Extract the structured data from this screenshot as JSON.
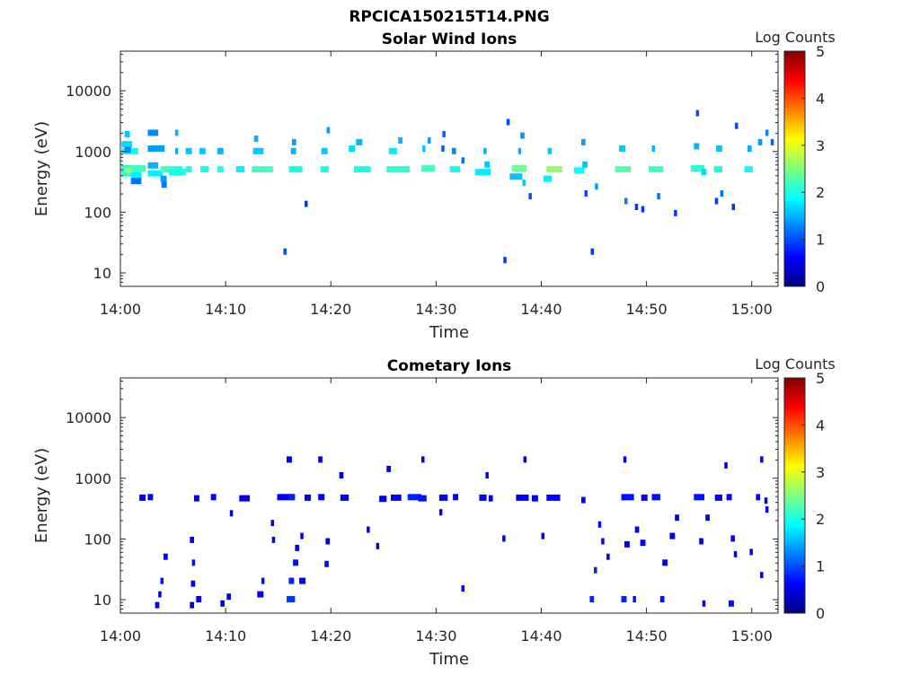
{
  "figure": {
    "title": "RPCICA150215T14.PNG"
  },
  "colormap": {
    "name": "jet",
    "stops": [
      "#00007f",
      "#0000ff",
      "#007fff",
      "#00ffff",
      "#7fff7f",
      "#ffff00",
      "#ff7f00",
      "#ff0000",
      "#7f0000"
    ]
  },
  "chart_data": [
    {
      "type": "heatmap",
      "title": "Solar Wind Ions",
      "xlabel": "Time",
      "ylabel": "Energy (eV)",
      "x_ticks": [
        "14:00",
        "14:10",
        "14:20",
        "14:30",
        "14:40",
        "14:50",
        "15:00"
      ],
      "x_tick_minutes": [
        0,
        10,
        20,
        30,
        40,
        50,
        60
      ],
      "xlim_minutes": [
        0,
        62.5
      ],
      "y_scale": "log",
      "y_ticks": [
        "10",
        "100",
        "1000",
        "10000"
      ],
      "y_tick_values": [
        10,
        100,
        1000,
        10000
      ],
      "ylim": [
        6,
        45000
      ],
      "colorbar": {
        "label": "Log Counts",
        "ticks": [
          "0",
          "1",
          "2",
          "3",
          "4",
          "5"
        ],
        "range": [
          0,
          5
        ]
      },
      "cells": [
        [
          0.1,
          520,
          1.3,
          2
        ],
        [
          0.1,
          430,
          1.8,
          2
        ],
        [
          0.1,
          1000,
          1.6,
          1.9
        ],
        [
          0.1,
          1300,
          1.0,
          1.7
        ],
        [
          0.4,
          480,
          1.5,
          2.6
        ],
        [
          0.4,
          1900,
          0.5,
          1.6
        ],
        [
          0.4,
          1050,
          0.6,
          1.3
        ],
        [
          1.0,
          520,
          1.4,
          2.2
        ],
        [
          1.0,
          400,
          1.0,
          1.8
        ],
        [
          1.0,
          320,
          1.0,
          1.2
        ],
        [
          2.6,
          1100,
          1.6,
          1.4
        ],
        [
          2.6,
          2000,
          1.0,
          1.3
        ],
        [
          2.6,
          580,
          1.0,
          1.5
        ],
        [
          2.6,
          430,
          1.4,
          1.8
        ],
        [
          3.8,
          500,
          1.3,
          2.2
        ],
        [
          3.8,
          350,
          0.6,
          1.4
        ],
        [
          3.9,
          280,
          0.5,
          1.2
        ],
        [
          4.6,
          450,
          1.6,
          2.0
        ],
        [
          5.1,
          500,
          0.8,
          2.0
        ],
        [
          5.2,
          2000,
          0.3,
          1.5
        ],
        [
          5.2,
          1000,
          0.3,
          1.5
        ],
        [
          6.2,
          1000,
          0.6,
          1.6
        ],
        [
          6.2,
          500,
          0.6,
          2.0
        ],
        [
          7.6,
          500,
          0.8,
          2.0
        ],
        [
          7.5,
          1000,
          0.6,
          1.6
        ],
        [
          9.2,
          1000,
          0.6,
          1.5
        ],
        [
          9.2,
          500,
          0.6,
          2.0
        ],
        [
          11.0,
          500,
          0.8,
          1.8
        ],
        [
          12.5,
          500,
          2.0,
          2.2
        ],
        [
          12.6,
          1000,
          1.0,
          1.6
        ],
        [
          12.7,
          1600,
          0.4,
          1.5
        ],
        [
          16.0,
          500,
          1.3,
          2.0
        ],
        [
          16.2,
          1000,
          0.5,
          1.5
        ],
        [
          16.3,
          1400,
          0.4,
          1.4
        ],
        [
          19.0,
          500,
          0.8,
          2.0
        ],
        [
          19.1,
          1000,
          0.6,
          1.6
        ],
        [
          19.6,
          2200,
          0.3,
          1.4
        ],
        [
          21.7,
          1100,
          0.6,
          1.7
        ],
        [
          22.2,
          500,
          1.6,
          2.0
        ],
        [
          22.4,
          1400,
          0.6,
          1.5
        ],
        [
          25.3,
          500,
          2.2,
          2.1
        ],
        [
          25.5,
          1000,
          0.8,
          1.8
        ],
        [
          26.4,
          1500,
          0.4,
          1.5
        ],
        [
          28.6,
          520,
          1.3,
          2.2
        ],
        [
          28.7,
          1100,
          0.3,
          1.6
        ],
        [
          29.2,
          1500,
          0.3,
          1.4
        ],
        [
          31.3,
          500,
          1.0,
          2.0
        ],
        [
          31.5,
          1000,
          0.4,
          1.3
        ],
        [
          32.4,
          700,
          0.3,
          1.2
        ],
        [
          33.7,
          450,
          1.5,
          1.8
        ],
        [
          34.5,
          1000,
          0.3,
          1.5
        ],
        [
          34.6,
          600,
          0.5,
          1.6
        ],
        [
          37.2,
          520,
          1.4,
          2.4
        ],
        [
          37.0,
          380,
          1.2,
          1.6
        ],
        [
          37.8,
          1000,
          0.3,
          1.5
        ],
        [
          38.0,
          1800,
          0.4,
          1.4
        ],
        [
          38.2,
          300,
          0.3,
          1.6
        ],
        [
          40.5,
          500,
          1.5,
          2.6
        ],
        [
          40.2,
          350,
          0.8,
          1.8
        ],
        [
          40.6,
          1000,
          0.4,
          1.6
        ],
        [
          43.1,
          480,
          1.0,
          1.9
        ],
        [
          43.8,
          1400,
          0.4,
          1.4
        ],
        [
          43.9,
          600,
          0.5,
          1.6
        ],
        [
          45.1,
          260,
          0.3,
          1.4
        ],
        [
          47.0,
          500,
          1.5,
          2.3
        ],
        [
          47.4,
          1100,
          0.6,
          1.6
        ],
        [
          47.9,
          150,
          0.3,
          1.2
        ],
        [
          50.2,
          500,
          1.4,
          2.2
        ],
        [
          50.5,
          1100,
          0.3,
          1.5
        ],
        [
          51.0,
          180,
          0.3,
          1.2
        ],
        [
          54.2,
          520,
          1.3,
          2.1
        ],
        [
          54.5,
          1200,
          0.5,
          1.5
        ],
        [
          55.2,
          450,
          0.5,
          1.7
        ],
        [
          56.4,
          500,
          0.8,
          2.0
        ],
        [
          56.6,
          1100,
          0.6,
          1.6
        ],
        [
          57.0,
          200,
          0.3,
          1.2
        ],
        [
          59.3,
          500,
          0.8,
          1.9
        ],
        [
          59.6,
          1100,
          0.4,
          1.5
        ],
        [
          60.6,
          1400,
          0.4,
          1.4
        ],
        [
          61.3,
          2000,
          0.3,
          1.3
        ],
        [
          15.5,
          22,
          0.3,
          1.0
        ],
        [
          36.4,
          16,
          0.3,
          0.9
        ],
        [
          44.7,
          22,
          0.3,
          0.9
        ],
        [
          17.5,
          135,
          0.3,
          0.9
        ],
        [
          30.5,
          1100,
          0.3,
          1.1
        ],
        [
          30.6,
          1900,
          0.3,
          1.1
        ],
        [
          36.7,
          3000,
          0.3,
          1.0
        ],
        [
          38.8,
          180,
          0.3,
          1.0
        ],
        [
          44.1,
          200,
          0.3,
          1.0
        ],
        [
          48.9,
          120,
          0.3,
          0.9
        ],
        [
          49.5,
          110,
          0.3,
          0.9
        ],
        [
          52.6,
          95,
          0.3,
          0.9
        ],
        [
          54.7,
          4200,
          0.3,
          1.0
        ],
        [
          56.5,
          150,
          0.3,
          0.9
        ],
        [
          58.1,
          120,
          0.3,
          0.9
        ],
        [
          58.4,
          2600,
          0.3,
          1.0
        ],
        [
          61.8,
          1400,
          0.3,
          1.1
        ]
      ]
    },
    {
      "type": "heatmap",
      "title": "Cometary Ions",
      "xlabel": "Time",
      "ylabel": "Energy (eV)",
      "x_ticks": [
        "14:00",
        "14:10",
        "14:20",
        "14:30",
        "14:40",
        "14:50",
        "15:00"
      ],
      "x_tick_minutes": [
        0,
        10,
        20,
        30,
        40,
        50,
        60
      ],
      "xlim_minutes": [
        0,
        62.5
      ],
      "y_scale": "log",
      "y_ticks": [
        "10",
        "100",
        "1000",
        "10000"
      ],
      "y_tick_values": [
        10,
        100,
        1000,
        10000
      ],
      "ylim": [
        6,
        45000
      ],
      "colorbar": {
        "label": "Log Counts",
        "ticks": [
          "0",
          "1",
          "2",
          "3",
          "4",
          "5"
        ],
        "range": [
          0,
          5
        ]
      },
      "cells": [
        [
          1.8,
          470,
          0.6,
          0.6
        ],
        [
          2.6,
          480,
          0.5,
          0.6
        ],
        [
          7.0,
          460,
          0.5,
          0.6
        ],
        [
          8.6,
          480,
          0.5,
          0.6
        ],
        [
          11.3,
          460,
          1.0,
          0.6
        ],
        [
          14.9,
          480,
          1.5,
          0.6
        ],
        [
          16.0,
          480,
          0.6,
          0.8
        ],
        [
          17.5,
          470,
          0.6,
          0.6
        ],
        [
          18.8,
          480,
          0.6,
          0.6
        ],
        [
          20.9,
          470,
          0.8,
          0.6
        ],
        [
          24.6,
          450,
          0.7,
          0.6
        ],
        [
          25.7,
          470,
          1.0,
          0.6
        ],
        [
          27.3,
          480,
          1.3,
          0.8
        ],
        [
          28.3,
          460,
          0.8,
          0.7
        ],
        [
          30.3,
          470,
          0.8,
          0.6
        ],
        [
          31.6,
          480,
          0.5,
          0.6
        ],
        [
          34.1,
          470,
          0.7,
          0.6
        ],
        [
          35.0,
          460,
          0.4,
          0.6
        ],
        [
          37.6,
          470,
          1.2,
          0.6
        ],
        [
          39.1,
          460,
          0.6,
          0.6
        ],
        [
          40.5,
          470,
          1.3,
          0.6
        ],
        [
          43.8,
          430,
          0.4,
          0.6
        ],
        [
          47.6,
          480,
          1.2,
          0.7
        ],
        [
          49.5,
          470,
          0.6,
          0.6
        ],
        [
          50.5,
          480,
          0.8,
          0.7
        ],
        [
          54.5,
          480,
          1.0,
          0.7
        ],
        [
          56.5,
          470,
          0.7,
          0.6
        ],
        [
          57.6,
          480,
          0.5,
          0.6
        ],
        [
          60.4,
          480,
          0.4,
          0.6
        ],
        [
          61.2,
          420,
          0.3,
          0.6
        ],
        [
          3.3,
          8.0,
          0.4,
          0.6
        ],
        [
          3.6,
          12,
          0.3,
          0.6
        ],
        [
          3.8,
          20,
          0.3,
          0.7
        ],
        [
          4.1,
          50,
          0.4,
          0.6
        ],
        [
          6.6,
          8.0,
          0.4,
          0.6
        ],
        [
          6.7,
          18,
          0.4,
          0.6
        ],
        [
          6.8,
          40,
          0.3,
          0.7
        ],
        [
          6.6,
          95,
          0.4,
          0.5
        ],
        [
          7.2,
          10,
          0.5,
          0.6
        ],
        [
          9.5,
          8.5,
          0.4,
          0.6
        ],
        [
          10.1,
          11,
          0.4,
          0.6
        ],
        [
          10.4,
          260,
          0.3,
          0.5
        ],
        [
          13.0,
          12,
          0.6,
          0.6
        ],
        [
          13.4,
          20,
          0.3,
          0.7
        ],
        [
          14.3,
          180,
          0.3,
          0.5
        ],
        [
          14.4,
          95,
          0.3,
          0.5
        ],
        [
          15.8,
          10,
          0.8,
          0.9
        ],
        [
          16.0,
          20,
          0.5,
          0.8
        ],
        [
          16.4,
          40,
          0.5,
          0.7
        ],
        [
          16.6,
          70,
          0.4,
          0.6
        ],
        [
          17.1,
          110,
          0.3,
          0.6
        ],
        [
          17.0,
          20,
          0.6,
          0.6
        ],
        [
          19.4,
          38,
          0.4,
          0.7
        ],
        [
          19.5,
          90,
          0.4,
          0.6
        ],
        [
          20.8,
          1100,
          0.4,
          0.5
        ],
        [
          23.4,
          140,
          0.3,
          0.5
        ],
        [
          24.3,
          75,
          0.3,
          0.5
        ],
        [
          25.3,
          1400,
          0.4,
          0.5
        ],
        [
          28.6,
          2000,
          0.3,
          0.5
        ],
        [
          30.3,
          270,
          0.3,
          0.5
        ],
        [
          32.4,
          15,
          0.3,
          0.6
        ],
        [
          34.7,
          1100,
          0.3,
          0.5
        ],
        [
          36.3,
          100,
          0.3,
          0.5
        ],
        [
          38.3,
          2000,
          0.3,
          0.5
        ],
        [
          40.0,
          110,
          0.3,
          0.6
        ],
        [
          44.6,
          10,
          0.4,
          0.8
        ],
        [
          45.0,
          30,
          0.3,
          0.8
        ],
        [
          45.4,
          170,
          0.3,
          0.6
        ],
        [
          45.7,
          90,
          0.3,
          0.6
        ],
        [
          46.2,
          50,
          0.3,
          0.6
        ],
        [
          47.6,
          10,
          0.5,
          0.8
        ],
        [
          47.9,
          80,
          0.5,
          0.6
        ],
        [
          48.7,
          10,
          0.3,
          0.7
        ],
        [
          48.9,
          140,
          0.4,
          0.6
        ],
        [
          49.4,
          85,
          0.5,
          0.6
        ],
        [
          51.3,
          10,
          0.4,
          0.7
        ],
        [
          51.5,
          40,
          0.5,
          0.6
        ],
        [
          52.2,
          110,
          0.5,
          0.6
        ],
        [
          52.7,
          220,
          0.4,
          0.6
        ],
        [
          55.3,
          8.5,
          0.3,
          0.6
        ],
        [
          55.6,
          220,
          0.4,
          0.6
        ],
        [
          55.0,
          90,
          0.4,
          0.6
        ],
        [
          57.8,
          8.5,
          0.5,
          0.7
        ],
        [
          58.0,
          100,
          0.4,
          0.6
        ],
        [
          58.3,
          55,
          0.3,
          0.6
        ],
        [
          59.8,
          60,
          0.3,
          0.5
        ],
        [
          60.8,
          25,
          0.3,
          0.5
        ],
        [
          61.3,
          300,
          0.3,
          0.5
        ],
        [
          15.8,
          2000,
          0.5,
          0.5
        ],
        [
          18.8,
          2000,
          0.4,
          0.5
        ],
        [
          47.8,
          2000,
          0.3,
          0.5
        ],
        [
          57.4,
          1600,
          0.3,
          0.5
        ],
        [
          60.8,
          2000,
          0.3,
          0.5
        ]
      ]
    }
  ]
}
